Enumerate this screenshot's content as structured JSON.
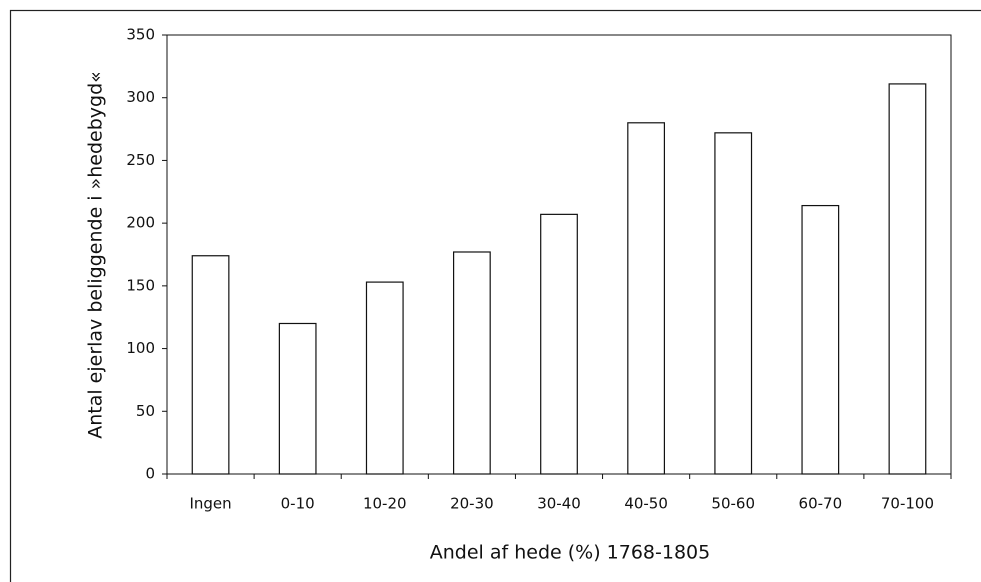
{
  "chart_data": {
    "type": "bar",
    "categories": [
      "Ingen",
      "0-10",
      "10-20",
      "20-30",
      "30-40",
      "40-50",
      "50-60",
      "60-70",
      "70-100"
    ],
    "values": [
      174,
      120,
      153,
      177,
      207,
      280,
      272,
      214,
      311
    ],
    "color": "#ffffff",
    "ylim": [
      0,
      350
    ],
    "yticks": [
      0,
      50,
      100,
      150,
      200,
      250,
      300,
      350
    ],
    "xlabel": "Andel af hede (%) 1768-1805",
    "ylabel": "Antal ejerlav beliggende i »hedebygd«",
    "grid": false
  }
}
